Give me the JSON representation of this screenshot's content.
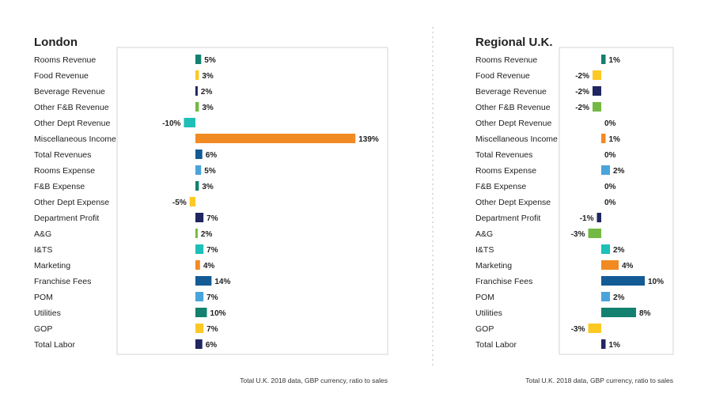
{
  "colors": {
    "teal": "#14806f",
    "yellow": "#fcc824",
    "navy": "#1f2660",
    "green": "#74b944",
    "cyan": "#1dbfb8",
    "orange": "#f28a23",
    "blue": "#135b95",
    "lightblue": "#4aa4dc",
    "frame": "#d6d6d6",
    "divider": "#bbbbbb"
  },
  "chart_data": [
    {
      "type": "bar",
      "orientation": "horizontal",
      "title": "London",
      "note": "Total U.K. 2018 data, GBP currency, ratio to sales",
      "categories": [
        "Rooms Revenue",
        "Food Revenue",
        "Beverage Revenue",
        "Other F&B Revenue",
        "Other Dept Revenue",
        "Miscellaneous Income",
        "Total Revenues",
        "Rooms Expense",
        "F&B Expense",
        "Other Dept Expense",
        "Department Profit",
        "A&G",
        "I&TS",
        "Marketing",
        "Franchise Fees",
        "POM",
        "Utilities",
        "GOP",
        "Total Labor"
      ],
      "values": [
        5,
        3,
        2,
        3,
        -10,
        139,
        6,
        5,
        3,
        -5,
        7,
        2,
        7,
        4,
        14,
        7,
        10,
        7,
        6
      ],
      "labels": [
        "5%",
        "3%",
        "2%",
        "3%",
        "-10%",
        "139%",
        "6%",
        "5%",
        "3%",
        "-5%",
        "7%",
        "2%",
        "7%",
        "4%",
        "14%",
        "7%",
        "10%",
        "7%",
        "6%"
      ],
      "bar_colors": [
        "teal",
        "yellow",
        "navy",
        "green",
        "cyan",
        "orange",
        "blue",
        "lightblue",
        "teal",
        "yellow",
        "navy",
        "green",
        "cyan",
        "orange",
        "blue",
        "lightblue",
        "teal",
        "yellow",
        "navy"
      ],
      "xlim": [
        -40,
        150
      ],
      "grid": false
    },
    {
      "type": "bar",
      "orientation": "horizontal",
      "title": "Regional U.K.",
      "note": "Total U.K. 2018 data, GBP currency, ratio to sales",
      "categories": [
        "Rooms Revenue",
        "Food Revenue",
        "Beverage Revenue",
        "Other F&B Revenue",
        "Other Dept Revenue",
        "Miscellaneous Income",
        "Total Revenues",
        "Rooms Expense",
        "F&B Expense",
        "Other Dept Expense",
        "Department Profit",
        "A&G",
        "I&TS",
        "Marketing",
        "Franchise Fees",
        "POM",
        "Utilities",
        "GOP",
        "Total Labor"
      ],
      "values": [
        1,
        -2,
        -2,
        -2,
        0,
        1,
        0,
        2,
        0,
        0,
        -1,
        -3,
        2,
        4,
        10,
        2,
        8,
        -3,
        1
      ],
      "labels": [
        "1%",
        "-2%",
        "-2%",
        "-2%",
        "0%",
        "1%",
        "0%",
        "2%",
        "0%",
        "0%",
        "-1%",
        "-3%",
        "2%",
        "4%",
        "10%",
        "2%",
        "8%",
        "-3%",
        "1%"
      ],
      "bar_colors": [
        "teal",
        "yellow",
        "navy",
        "green",
        "cyan",
        "orange",
        "blue",
        "lightblue",
        "teal",
        "yellow",
        "navy",
        "green",
        "cyan",
        "orange",
        "blue",
        "lightblue",
        "teal",
        "yellow",
        "navy"
      ],
      "xlim": [
        -15,
        30
      ],
      "grid": false
    }
  ]
}
